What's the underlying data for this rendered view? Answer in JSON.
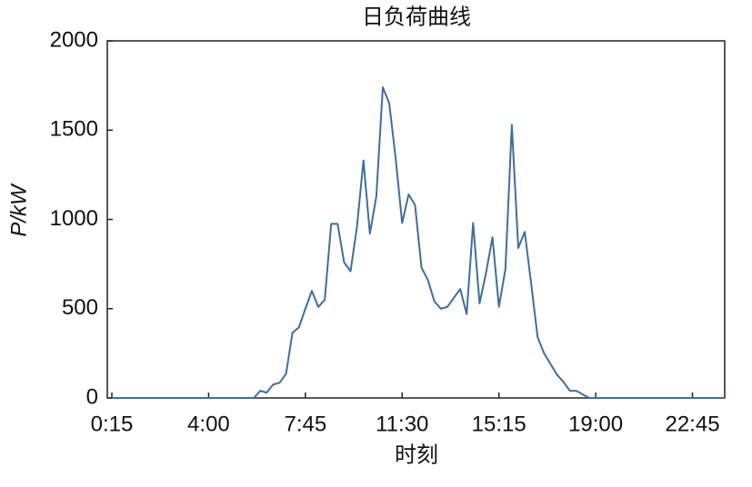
{
  "chart_data": {
    "type": "line",
    "title": "日负荷曲线",
    "x_label": "时刻",
    "y_label": "P/kW",
    "categories": [
      "0:15",
      null,
      null,
      null,
      null,
      null,
      null,
      null,
      null,
      null,
      null,
      null,
      null,
      null,
      null,
      "4:00",
      null,
      null,
      null,
      null,
      null,
      null,
      null,
      null,
      null,
      null,
      null,
      null,
      null,
      null,
      "7:45",
      null,
      null,
      null,
      null,
      null,
      null,
      null,
      null,
      null,
      null,
      null,
      null,
      null,
      null,
      "11:30",
      null,
      null,
      null,
      null,
      null,
      null,
      null,
      null,
      null,
      null,
      null,
      null,
      null,
      null,
      "15:15",
      null,
      null,
      null,
      null,
      null,
      null,
      null,
      null,
      null,
      null,
      null,
      null,
      null,
      null,
      "19:00",
      null,
      null,
      null,
      null,
      null,
      null,
      null,
      null,
      null,
      null,
      null,
      null,
      null,
      null,
      "22:45",
      null,
      null,
      null,
      null,
      null
    ],
    "values": [
      0,
      0,
      0,
      0,
      0,
      0,
      0,
      0,
      0,
      0,
      0,
      0,
      0,
      0,
      0,
      0,
      0,
      0,
      0,
      0,
      0,
      0,
      0,
      40,
      30,
      75,
      85,
      135,
      365,
      395,
      500,
      600,
      510,
      550,
      975,
      975,
      760,
      710,
      960,
      1330,
      920,
      1130,
      1740,
      1650,
      1340,
      980,
      1140,
      1080,
      730,
      660,
      540,
      500,
      510,
      560,
      610,
      470,
      980,
      530,
      700,
      900,
      510,
      720,
      1530,
      840,
      930,
      640,
      340,
      250,
      190,
      130,
      90,
      40,
      40,
      20,
      0,
      0,
      0,
      0,
      0,
      0,
      0,
      0,
      0,
      0,
      0,
      0,
      0,
      0,
      0,
      0,
      0,
      0,
      0,
      0,
      0,
      0
    ],
    "color": "#3f6e9e",
    "ylim": [
      0,
      2000
    ],
    "yticks": [
      0,
      500,
      1000,
      1500,
      2000
    ],
    "grid": false
  }
}
